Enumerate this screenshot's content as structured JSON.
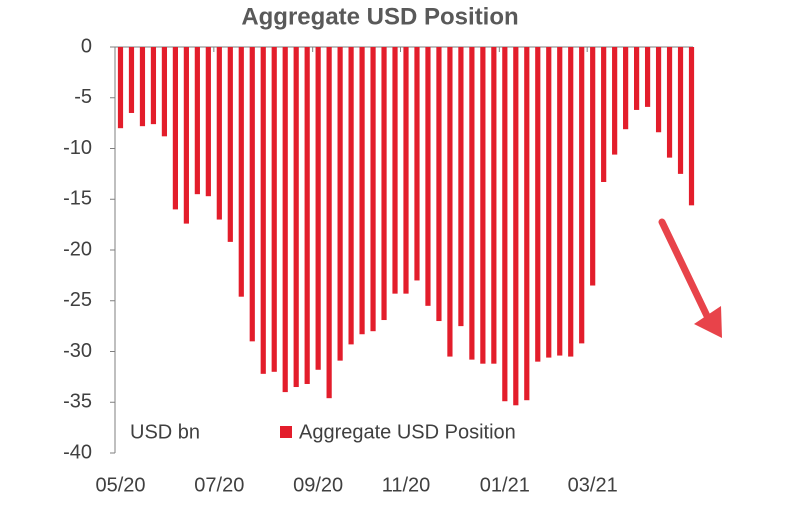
{
  "chart_data": {
    "type": "bar",
    "title": "Aggregate USD Position",
    "annotation": "USD bn",
    "categories": [
      "05/20",
      null,
      null,
      null,
      null,
      null,
      null,
      null,
      null,
      "07/20",
      null,
      null,
      null,
      null,
      null,
      null,
      null,
      null,
      "09/20",
      null,
      null,
      null,
      null,
      null,
      null,
      null,
      "11/20",
      null,
      null,
      null,
      null,
      null,
      null,
      null,
      null,
      "01/21",
      null,
      null,
      null,
      null,
      null,
      null,
      null,
      "03/21",
      null,
      null,
      null,
      null,
      null,
      null,
      null,
      null,
      null
    ],
    "series": [
      {
        "name": "Aggregate USD Position",
        "color": "#e31d2b",
        "values": [
          -8,
          -6.5,
          -7.8,
          -7.6,
          -8.8,
          -16,
          -17.4,
          -14.5,
          -14.7,
          -17,
          -19.2,
          -24.6,
          -29,
          -32.2,
          -32,
          -34,
          -33.5,
          -33.2,
          -31.8,
          -34.6,
          -30.9,
          -29.3,
          -28.3,
          -28,
          -26.9,
          -24.3,
          -24.3,
          -23,
          -25.5,
          -27,
          -30.5,
          -27.5,
          -30.8,
          -31.2,
          -31.2,
          -34.9,
          -35.3,
          -34.8,
          -31,
          -30.6,
          -30.4,
          -30.5,
          -29.2,
          -23.5,
          -13.3,
          -10.6,
          -8.1,
          -6.2,
          -5.9,
          -8.4,
          -10.9,
          -12.5,
          -15.6
        ]
      }
    ],
    "ylim": [
      0,
      -40
    ],
    "yticks": [
      0,
      -5,
      -10,
      -15,
      -20,
      -25,
      -30,
      -35,
      -40
    ],
    "grid": false
  }
}
